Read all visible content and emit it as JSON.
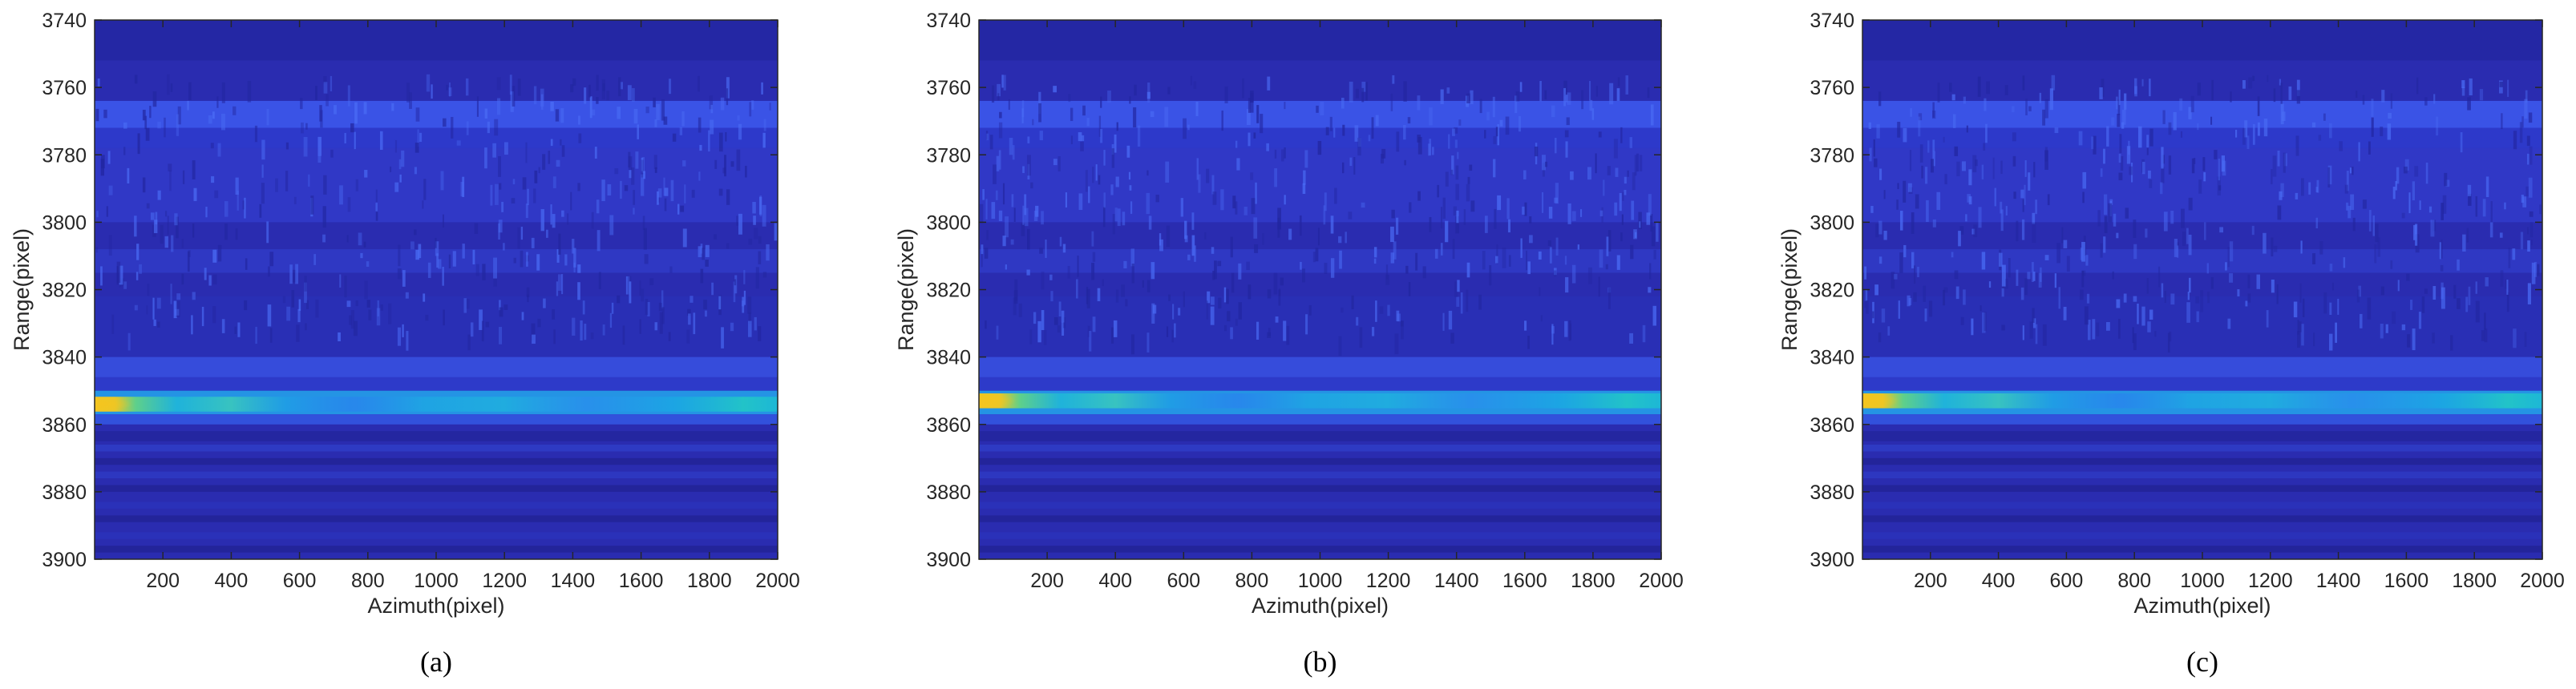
{
  "figure": {
    "panels": [
      "(a)",
      "(b)",
      "(c)"
    ]
  },
  "chart_data": [
    {
      "type": "heatmap",
      "caption": "(a)",
      "xlabel": "Azimuth(pixel)",
      "ylabel": "Range(pixel)",
      "xlim": [
        0,
        2000
      ],
      "ylim": [
        3740,
        3900
      ],
      "x_ticks": [
        200,
        400,
        600,
        800,
        1000,
        1200,
        1400,
        1600,
        1800,
        2000
      ],
      "y_ticks": [
        3740,
        3760,
        3780,
        3800,
        3820,
        3840,
        3860,
        3880,
        3900
      ],
      "colormap": "parula",
      "peak_range": 3854,
      "peak_azimuth": 20
    },
    {
      "type": "heatmap",
      "caption": "(b)",
      "xlabel": "Azimuth(pixel)",
      "ylabel": "Range(pixel)",
      "xlim": [
        0,
        2000
      ],
      "ylim": [
        3740,
        3900
      ],
      "x_ticks": [
        200,
        400,
        600,
        800,
        1000,
        1200,
        1400,
        1600,
        1800,
        2000
      ],
      "y_ticks": [
        3740,
        3760,
        3780,
        3800,
        3820,
        3840,
        3860,
        3880,
        3900
      ],
      "colormap": "parula",
      "peak_range": 3853,
      "peak_azimuth": 20
    },
    {
      "type": "heatmap",
      "caption": "(c)",
      "xlabel": "Azimuth(pixel)",
      "ylabel": "Range(pixel)",
      "xlim": [
        0,
        2000
      ],
      "ylim": [
        3740,
        3900
      ],
      "x_ticks": [
        200,
        400,
        600,
        800,
        1000,
        1200,
        1400,
        1600,
        1800,
        2000
      ],
      "y_ticks": [
        3740,
        3760,
        3780,
        3800,
        3820,
        3840,
        3860,
        3880,
        3900
      ],
      "colormap": "parula",
      "peak_range": 3853,
      "peak_azimuth": 20
    }
  ],
  "colors": {
    "background": "#2b2fb8",
    "band": "#1cbde0",
    "peak": "#f4c51f",
    "axis": "#262626"
  }
}
